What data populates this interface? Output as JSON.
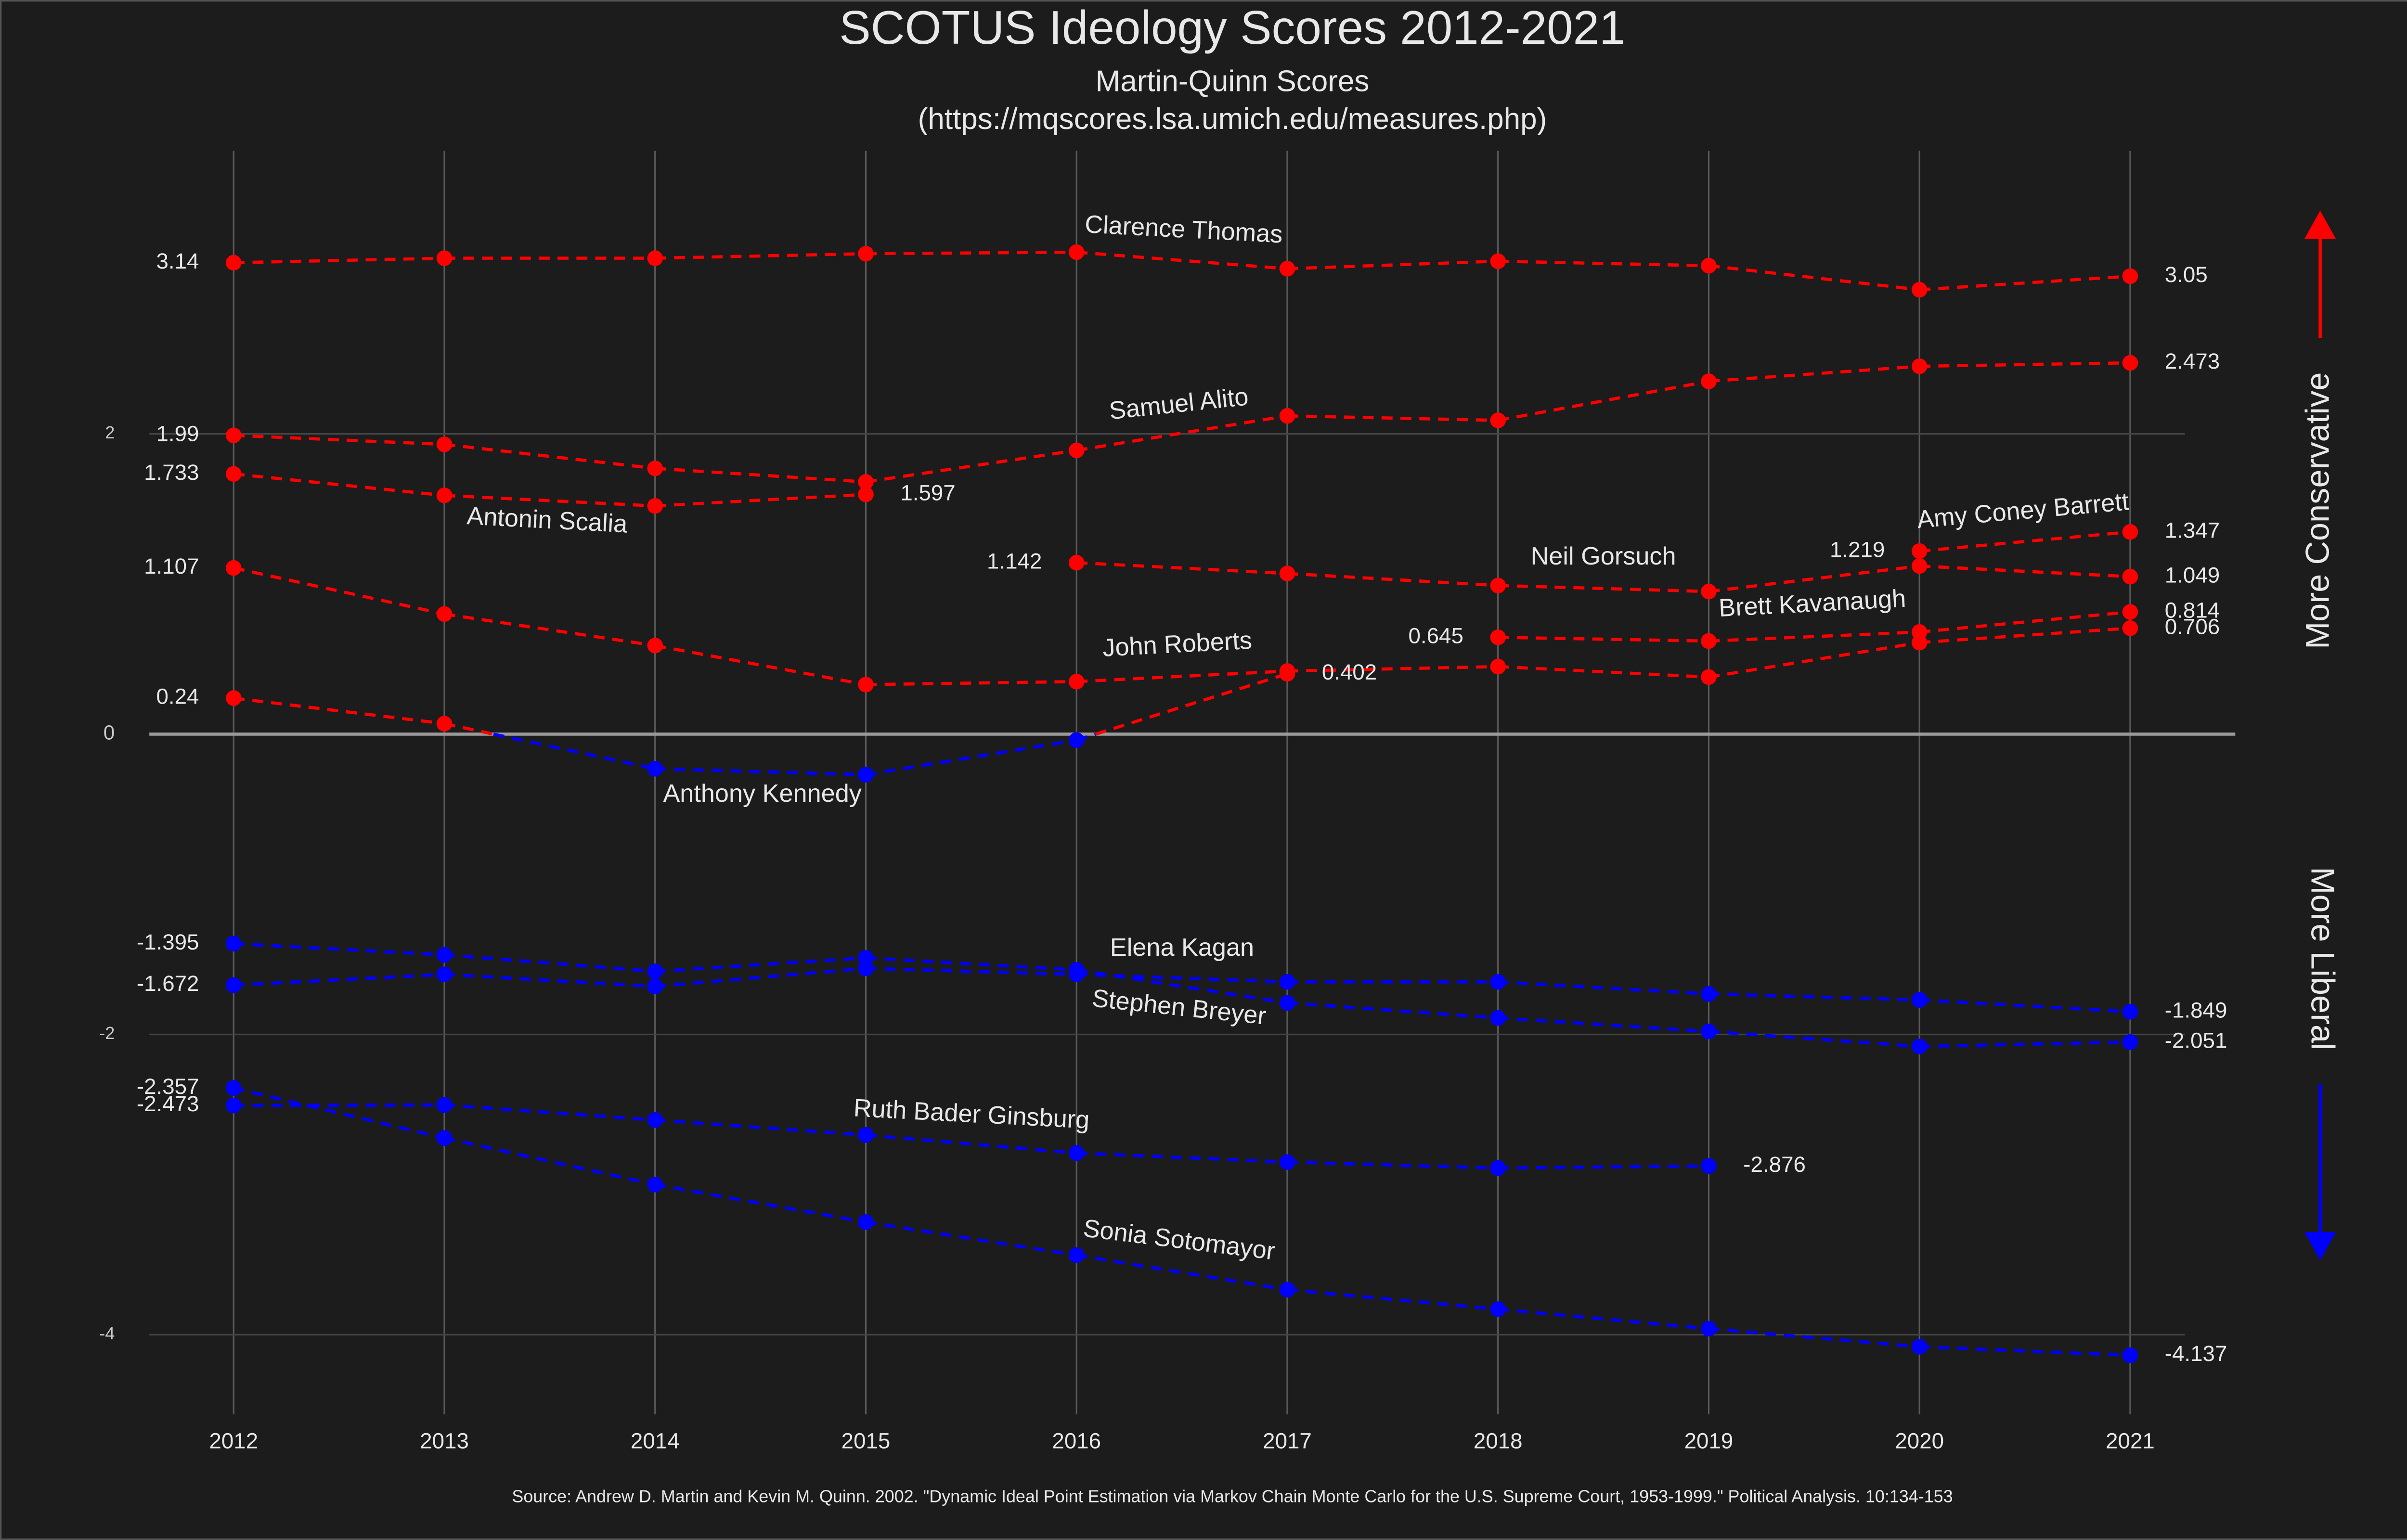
{
  "chart_data": {
    "type": "line",
    "title": "SCOTUS Ideology Scores 2012-2021",
    "subtitle": [
      "Martin-Quinn Scores",
      "(https://mqscores.lsa.umich.edu/measures.php)"
    ],
    "source": "Source:  Andrew D. Martin and Kevin M. Quinn. 2002.  \"Dynamic Ideal Point Estimation via Markov Chain Monte Carlo for the U.S. Supreme Court, 1953-1999.\"  Political Analysis. 10:134-153",
    "annotations": {
      "up": "More Conservative",
      "down": "More Liberal"
    },
    "colors": {
      "positive": "#ff0000",
      "negative": "#0000ff"
    },
    "x": [
      2012,
      2013,
      2014,
      2015,
      2016,
      2017,
      2018,
      2019,
      2020,
      2021
    ],
    "xlim": [
      2011.6,
      2021.26
    ],
    "xticks": [
      2012,
      2013,
      2014,
      2015,
      2016,
      2017,
      2018,
      2019,
      2020,
      2021
    ],
    "ylim": [
      -4.53,
      3.885
    ],
    "yticks": [
      -4,
      -2,
      0,
      2
    ],
    "grid": true,
    "series": [
      {
        "name": "Clarence Thomas",
        "values": [
          3.14,
          3.17,
          3.17,
          3.2,
          3.21,
          3.1,
          3.15,
          3.12,
          2.96,
          3.05
        ],
        "value_labels": [
          "3.14",
          null,
          null,
          null,
          null,
          null,
          null,
          null,
          null,
          "3.05"
        ]
      },
      {
        "name": "Samuel Alito",
        "values": [
          1.99,
          1.93,
          1.77,
          1.68,
          1.89,
          2.12,
          2.09,
          2.35,
          2.45,
          2.473
        ],
        "value_labels": [
          "1.99",
          null,
          null,
          null,
          null,
          null,
          null,
          null,
          null,
          "2.473"
        ]
      },
      {
        "name": "Antonin Scalia",
        "values": [
          1.733,
          1.59,
          1.52,
          1.597,
          null,
          null,
          null,
          null,
          null,
          null
        ],
        "value_labels": [
          "1.733",
          null,
          null,
          "1.597",
          null,
          null,
          null,
          null,
          null,
          null
        ]
      },
      {
        "name": "John Roberts",
        "values": [
          1.107,
          0.8,
          0.59,
          0.33,
          0.35,
          0.42,
          0.45,
          0.38,
          0.61,
          0.706
        ],
        "value_labels": [
          "1.107",
          null,
          null,
          null,
          null,
          null,
          null,
          null,
          null,
          "0.706"
        ]
      },
      {
        "name": "Anthony Kennedy",
        "values": [
          0.24,
          0.07,
          -0.23,
          -0.27,
          -0.04,
          0.402,
          null,
          null,
          null,
          null
        ],
        "value_labels": [
          "0.24",
          null,
          null,
          null,
          null,
          "0.402",
          null,
          null,
          null,
          null
        ]
      },
      {
        "name": "Neil Gorsuch",
        "values": [
          null,
          null,
          null,
          null,
          1.142,
          1.07,
          0.99,
          0.95,
          1.12,
          1.049
        ],
        "value_labels": [
          null,
          null,
          null,
          null,
          "1.142",
          null,
          null,
          null,
          null,
          "1.049"
        ]
      },
      {
        "name": "Brett Kavanaugh",
        "values": [
          null,
          null,
          null,
          null,
          null,
          null,
          0.645,
          0.62,
          0.68,
          0.814
        ],
        "value_labels": [
          null,
          null,
          null,
          null,
          null,
          null,
          "0.645",
          null,
          null,
          "0.814"
        ]
      },
      {
        "name": "Amy Coney Barrett",
        "values": [
          null,
          null,
          null,
          null,
          null,
          null,
          null,
          null,
          1.219,
          1.347
        ],
        "value_labels": [
          null,
          null,
          null,
          null,
          null,
          null,
          null,
          null,
          "1.219",
          "1.347"
        ]
      },
      {
        "name": "Stephen Breyer",
        "values": [
          -1.395,
          -1.47,
          -1.58,
          -1.49,
          -1.57,
          -1.79,
          -1.89,
          -1.98,
          -2.08,
          -2.051
        ],
        "value_labels": [
          "-1.395",
          null,
          null,
          null,
          null,
          null,
          null,
          null,
          null,
          "-2.051"
        ]
      },
      {
        "name": "Elena Kagan",
        "values": [
          -1.672,
          -1.6,
          -1.68,
          -1.56,
          -1.6,
          -1.65,
          -1.65,
          -1.73,
          -1.77,
          -1.849
        ],
        "value_labels": [
          "-1.672",
          null,
          null,
          null,
          null,
          null,
          null,
          null,
          null,
          "-1.849"
        ]
      },
      {
        "name": "Ruth Bader Ginsburg",
        "values": [
          -2.473,
          -2.47,
          -2.57,
          -2.67,
          -2.79,
          -2.85,
          -2.89,
          -2.876,
          null,
          null
        ],
        "value_labels": [
          "-2.473",
          null,
          null,
          null,
          null,
          null,
          null,
          "-2.876",
          null,
          null
        ]
      },
      {
        "name": "Sonia Sotomayor",
        "values": [
          -2.357,
          -2.69,
          -3.0,
          -3.25,
          -3.47,
          -3.7,
          -3.83,
          -3.96,
          -4.08,
          -4.137
        ],
        "value_labels": [
          "-2.357",
          null,
          null,
          null,
          null,
          null,
          null,
          null,
          null,
          "-4.137"
        ]
      }
    ]
  }
}
